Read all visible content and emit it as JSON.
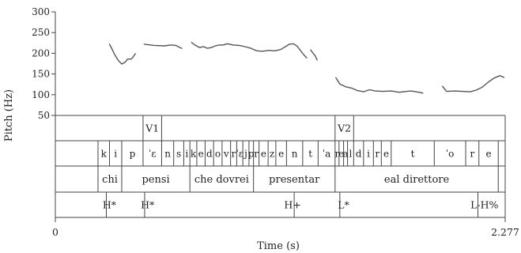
{
  "chart_data": {
    "type": "line",
    "ylabel": "Pitch (Hz)",
    "xlabel": "Time (s)",
    "xlim": [
      0,
      2.277
    ],
    "ylim": [
      50,
      300
    ],
    "yticks": [
      50,
      100,
      150,
      200,
      250,
      300
    ],
    "xtick_labels": [
      "0",
      "2.277"
    ],
    "series": [
      {
        "segments": [
          [
            [
              0.274,
              222
            ],
            [
              0.285,
              212
            ],
            [
              0.3,
              197
            ],
            [
              0.318,
              183
            ],
            [
              0.336,
              174
            ],
            [
              0.352,
              178
            ],
            [
              0.366,
              186
            ],
            [
              0.384,
              186
            ],
            [
              0.395,
              192
            ],
            [
              0.405,
              199
            ]
          ],
          [
            [
              0.45,
              222
            ],
            [
              0.5,
              219
            ],
            [
              0.55,
              218
            ],
            [
              0.585,
              220
            ],
            [
              0.61,
              219
            ],
            [
              0.625,
              215
            ],
            [
              0.64,
              212
            ]
          ],
          [
            [
              0.69,
              226
            ],
            [
              0.71,
              219
            ],
            [
              0.73,
              214
            ],
            [
              0.75,
              216
            ],
            [
              0.77,
              212
            ],
            [
              0.79,
              214
            ],
            [
              0.81,
              218
            ],
            [
              0.83,
              220
            ],
            [
              0.85,
              220
            ],
            [
              0.87,
              223
            ],
            [
              0.9,
              220
            ],
            [
              0.93,
              219
            ],
            [
              0.96,
              216
            ],
            [
              0.99,
              212
            ],
            [
              1.02,
              206
            ],
            [
              1.05,
              205
            ],
            [
              1.08,
              207
            ],
            [
              1.11,
              206
            ],
            [
              1.14,
              209
            ],
            [
              1.165,
              216
            ],
            [
              1.185,
              222
            ],
            [
              1.205,
              223
            ],
            [
              1.222,
              218
            ],
            [
              1.24,
              207
            ],
            [
              1.258,
              196
            ],
            [
              1.272,
              189
            ]
          ],
          [
            [
              1.292,
              208
            ],
            [
              1.305,
              200
            ],
            [
              1.315,
              194
            ],
            [
              1.325,
              184
            ]
          ],
          [
            [
              1.42,
              141
            ],
            [
              1.44,
              126
            ],
            [
              1.47,
              119
            ],
            [
              1.5,
              116
            ],
            [
              1.53,
              110
            ],
            [
              1.56,
              107
            ],
            [
              1.59,
              112
            ],
            [
              1.62,
              109
            ],
            [
              1.66,
              108
            ],
            [
              1.7,
              109
            ],
            [
              1.74,
              106
            ],
            [
              1.78,
              108
            ],
            [
              1.8,
              109
            ],
            [
              1.84,
              106
            ],
            [
              1.86,
              104
            ]
          ],
          [
            [
              1.96,
              120
            ],
            [
              1.98,
              108
            ],
            [
              2.02,
              109
            ],
            [
              2.06,
              108
            ],
            [
              2.1,
              107
            ],
            [
              2.13,
              111
            ],
            [
              2.16,
              118
            ],
            [
              2.19,
              130
            ],
            [
              2.22,
              140
            ],
            [
              2.25,
              146
            ],
            [
              2.27,
              142
            ]
          ]
        ]
      }
    ]
  },
  "tiers": {
    "vowel": [
      {
        "label": "V1",
        "start": 0.444,
        "end": 0.538
      },
      {
        "label": "V2",
        "start": 1.416,
        "end": 1.51
      }
    ],
    "segments": [
      {
        "label": "k",
        "start": 0.216,
        "end": 0.274
      },
      {
        "label": "i",
        "start": 0.274,
        "end": 0.336
      },
      {
        "label": "p",
        "start": 0.336,
        "end": 0.444
      },
      {
        "label": "ˈɛ",
        "start": 0.444,
        "end": 0.538
      },
      {
        "label": "n",
        "start": 0.538,
        "end": 0.599
      },
      {
        "label": "s",
        "start": 0.599,
        "end": 0.65
      },
      {
        "label": "i",
        "start": 0.65,
        "end": 0.681
      },
      {
        "label": "k",
        "start": 0.681,
        "end": 0.716
      },
      {
        "label": "e",
        "start": 0.716,
        "end": 0.758
      },
      {
        "label": "d",
        "start": 0.758,
        "end": 0.801
      },
      {
        "label": "o",
        "start": 0.801,
        "end": 0.844
      },
      {
        "label": "v",
        "start": 0.844,
        "end": 0.887
      },
      {
        "label": "r",
        "start": 0.887,
        "end": 0.918
      },
      {
        "label": "ˈɛ",
        "start": 0.918,
        "end": 0.949
      },
      {
        "label": "j",
        "start": 0.949,
        "end": 0.98
      },
      {
        "label": "p",
        "start": 0.98,
        "end": 1.003
      },
      {
        "label": "r",
        "start": 1.003,
        "end": 1.031
      },
      {
        "label": "e",
        "start": 1.031,
        "end": 1.077
      },
      {
        "label": "z",
        "start": 1.077,
        "end": 1.116
      },
      {
        "label": "e",
        "start": 1.116,
        "end": 1.17
      },
      {
        "label": "n",
        "start": 1.17,
        "end": 1.252
      },
      {
        "label": "t",
        "start": 1.252,
        "end": 1.33
      },
      {
        "label": "ˈa",
        "start": 1.33,
        "end": 1.416
      },
      {
        "label": "r",
        "start": 1.416,
        "end": 1.436
      },
      {
        "label": "e",
        "start": 1.436,
        "end": 1.459
      },
      {
        "label": "a",
        "start": 1.459,
        "end": 1.479
      },
      {
        "label": "l",
        "start": 1.479,
        "end": 1.51
      },
      {
        "label": "d",
        "start": 1.51,
        "end": 1.56
      },
      {
        "label": "i",
        "start": 1.56,
        "end": 1.61
      },
      {
        "label": "r",
        "start": 1.61,
        "end": 1.65
      },
      {
        "label": "e",
        "start": 1.65,
        "end": 1.7
      },
      {
        "label": "t",
        "start": 1.7,
        "end": 1.918
      },
      {
        "label": "ˈo",
        "start": 1.918,
        "end": 2.077
      },
      {
        "label": "r",
        "start": 2.077,
        "end": 2.144
      },
      {
        "label": "e",
        "start": 2.144,
        "end": 2.242
      }
    ],
    "words": [
      {
        "label": "chi",
        "start": 0.216,
        "end": 0.336
      },
      {
        "label": "pensi",
        "start": 0.336,
        "end": 0.681
      },
      {
        "label": "che dovrei",
        "start": 0.681,
        "end": 1.003
      },
      {
        "label": "presentar",
        "start": 1.003,
        "end": 1.416
      },
      {
        "label": "eal direttore",
        "start": 1.416,
        "end": 2.242
      }
    ],
    "tones": [
      {
        "label": "H*",
        "time": 0.274
      },
      {
        "label": "H*",
        "time": 0.467
      },
      {
        "label": "H+",
        "time": 1.201
      },
      {
        "label": "L*",
        "time": 1.459
      },
      {
        "label": "L-H%",
        "time": 2.172
      }
    ],
    "tone_marks": [
      0.258,
      0.452,
      1.209,
      1.44,
      2.139
    ]
  }
}
